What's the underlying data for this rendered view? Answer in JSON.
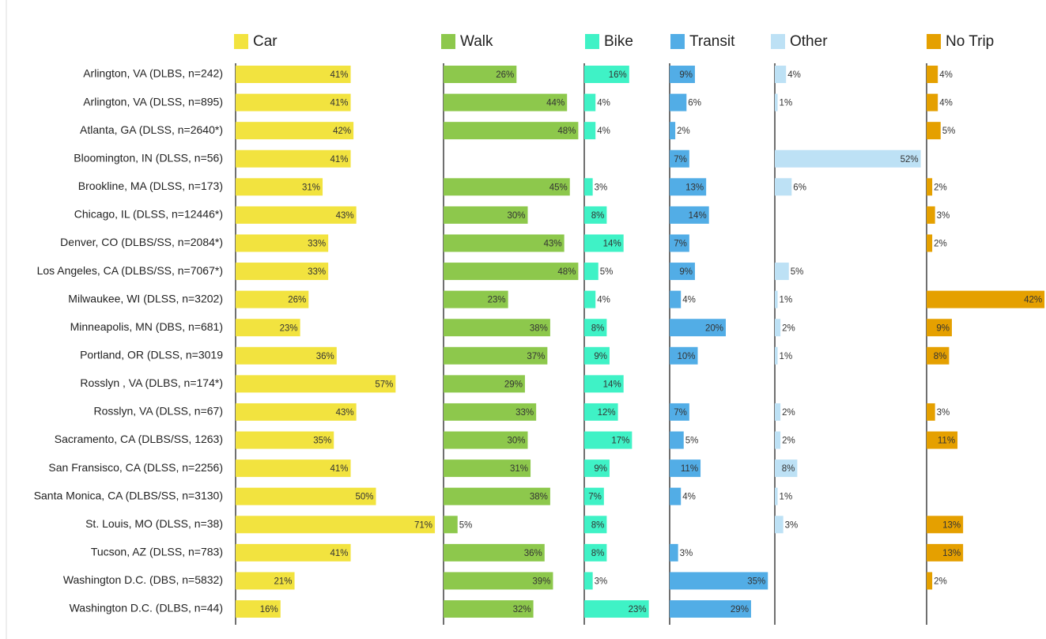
{
  "chart_data": {
    "type": "bar",
    "orientation": "horizontal",
    "layout": "small-multiples",
    "categories": [
      "Arlington, VA (DLBS, n=242)",
      "Arlington, VA (DLSS, n=895)",
      "Atlanta, GA (DLSS, n=2640*)",
      "Bloomington, IN (DLSS, n=56)",
      "Brookline, MA (DLSS, n=173)",
      "Chicago, IL (DLSS, n=12446*)",
      "Denver, CO (DLBS/SS, n=2084*)",
      "Los Angeles, CA (DLBS/SS, n=7067*)",
      "Milwaukee, WI (DLSS, n=3202)",
      "Minneapolis, MN (DBS, n=681)",
      "Portland, OR (DLSS, n=3019",
      "Rosslyn , VA (DLBS, n=174*)",
      "Rosslyn, VA (DLSS, n=67)",
      "Sacramento, CA (DLBS/SS, 1263)",
      "San Fransisco, CA (DLSS, n=2256)",
      "Santa Monica, CA (DLBS/SS, n=3130)",
      "St. Louis, MO (DLSS, n=38)",
      "Tucson, AZ (DLSS, n=783)",
      "Washington D.C. (DBS, n=5832)",
      "Washington D.C. (DLBS, n=44)"
    ],
    "series": [
      {
        "name": "Car",
        "color": "#f2e33f",
        "values": [
          41,
          41,
          42,
          41,
          31,
          43,
          33,
          33,
          26,
          23,
          36,
          57,
          43,
          35,
          41,
          50,
          71,
          41,
          21,
          16
        ],
        "value_labels": [
          "41%",
          "41%",
          "42%",
          "41%",
          "31%",
          "43%",
          "33%",
          "33%",
          "26%",
          "23%",
          "36%",
          "57%",
          "43%",
          "35%",
          "41%",
          "50%",
          "71%",
          "41%",
          "21%",
          "16%"
        ]
      },
      {
        "name": "Walk",
        "color": "#8dc84c",
        "values": [
          26,
          44,
          48,
          null,
          45,
          30,
          43,
          48,
          23,
          38,
          37,
          29,
          33,
          30,
          31,
          38,
          5,
          36,
          39,
          32
        ],
        "value_labels": [
          "26%",
          "44%",
          "48%",
          null,
          "45%",
          "30%",
          "43%",
          "48%",
          "23%",
          "38%",
          "37%",
          "29%",
          "33%",
          "30%",
          "31%",
          "38%",
          "5%",
          "36%",
          "39%",
          "32%"
        ]
      },
      {
        "name": "Bike",
        "color": "#3ff2c6",
        "values": [
          16,
          4,
          4,
          null,
          3,
          8,
          14,
          5,
          4,
          8,
          9,
          14,
          12,
          17,
          9,
          7,
          8,
          8,
          3,
          23
        ],
        "value_labels": [
          "16%",
          "4%",
          "4%",
          null,
          "3%",
          "8%",
          "14%",
          "5%",
          "4%",
          "8%",
          "9%",
          "14%",
          "12%",
          "17%",
          "9%",
          "7%",
          "8%",
          "8%",
          "3%",
          "23%"
        ]
      },
      {
        "name": "Transit",
        "color": "#52ade6",
        "values": [
          9,
          6,
          2,
          7,
          13,
          14,
          7,
          9,
          4,
          20,
          10,
          null,
          7,
          5,
          11,
          4,
          null,
          3,
          35,
          29
        ],
        "value_labels": [
          "9%",
          "6%",
          "2%",
          "7%",
          "13%",
          "14%",
          "7%",
          "9%",
          "4%",
          "20%",
          "10%",
          null,
          "7%",
          "5%",
          "11%",
          "4%",
          null,
          "3%",
          "35%",
          "29%"
        ]
      },
      {
        "name": "Other",
        "color": "#bde1f5",
        "values": [
          4,
          1,
          null,
          52,
          6,
          null,
          null,
          5,
          1,
          2,
          1,
          null,
          2,
          2,
          8,
          1,
          3,
          null,
          null,
          null
        ],
        "value_labels": [
          "4%",
          "1%",
          null,
          "52%",
          "6%",
          null,
          null,
          "5%",
          "1%",
          "2%",
          "1%",
          null,
          "2%",
          "2%",
          "8%",
          "1%",
          "3%",
          null,
          null,
          null
        ]
      },
      {
        "name": "No Trip",
        "color": "#e5a000",
        "values": [
          4,
          4,
          5,
          null,
          2,
          3,
          2,
          null,
          42,
          9,
          8,
          null,
          3,
          11,
          null,
          null,
          13,
          13,
          2,
          null
        ],
        "value_labels": [
          "4%",
          "4%",
          "5%",
          null,
          "2%",
          "3%",
          "2%",
          null,
          "42%",
          "9%",
          "8%",
          null,
          "3%",
          "11%",
          null,
          null,
          "13%",
          "13%",
          "2%",
          null
        ]
      }
    ]
  }
}
